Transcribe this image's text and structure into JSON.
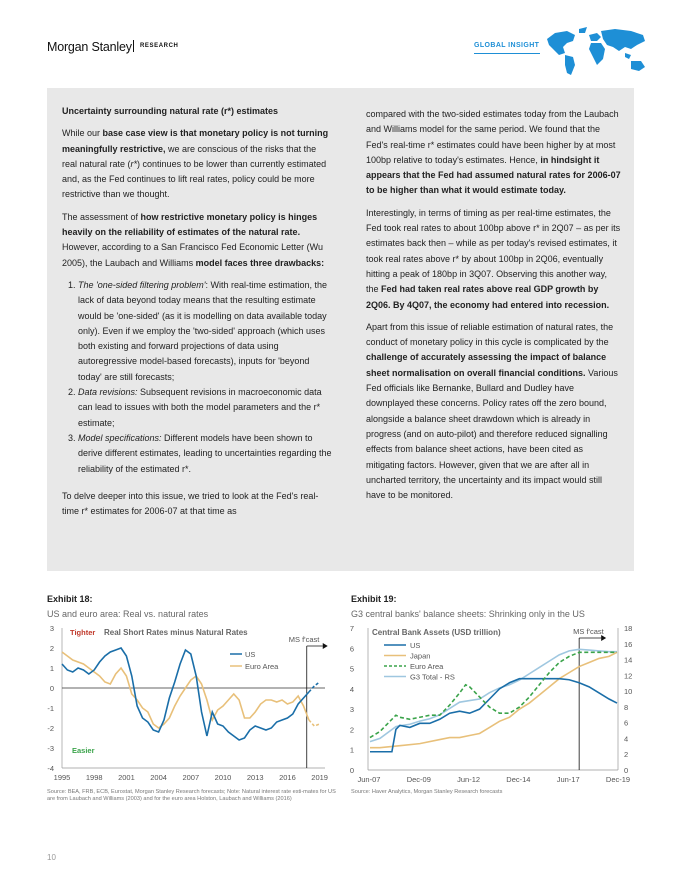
{
  "header": {
    "brand": "Morgan Stanley",
    "research": "RESEARCH",
    "global_insight": "GLOBAL INSIGHT"
  },
  "box": {
    "left": {
      "heading": "Uncertainty surrounding natural rate (r*) estimates",
      "p1": [
        {
          "t": "While our "
        },
        {
          "t": "base case view is that monetary policy is not turning meaningfully restrictive,",
          "b": true
        },
        {
          "t": " we are conscious of the risks that the real natural rate ("
        },
        {
          "t": "r*",
          "i": true
        },
        {
          "t": ") continues to be lower than currently estimated and, as the Fed continues to lift real rates, policy could be more restrictive than we thought."
        }
      ],
      "p2": [
        {
          "t": "The assessment of "
        },
        {
          "t": "how restrictive monetary policy is hinges heavily on the reliability of estimates of the natural rate.",
          "b": true
        },
        {
          "t": " However, according to a San Francisco Fed Economic Letter (Wu 2005), the Laubach and Williams "
        },
        {
          "t": "model faces three drawbacks:",
          "b": true
        }
      ],
      "list": [
        [
          {
            "t": "The 'one-sided filtering problem'",
            "i": true
          },
          {
            "t": ": With real-time estimation, the lack of data beyond today means that the resulting estimate would be 'one-sided' (as it is modelling on data available today only). Even if we employ the 'two-sided' approach (which uses both existing and forward projections of data using autoregressive model-based forecasts), inputs for 'beyond today' are still forecasts;"
          }
        ],
        [
          {
            "t": "Data revisions:",
            "i": true
          },
          {
            "t": " Subsequent revisions in macroeconomic data can lead to issues with both the model parameters and the r* estimate;"
          }
        ],
        [
          {
            "t": "Model specifications:",
            "i": true
          },
          {
            "t": " Different models have been shown to derive different estimates, leading to uncertainties regarding the reliability of the estimated r*."
          }
        ]
      ],
      "p3": [
        {
          "t": "To delve deeper into this issue, we tried to look at the Fed's real-time r* estimates for 2006-07 at that time as"
        }
      ]
    },
    "right": {
      "p1": [
        {
          "t": "compared with the two-sided estimates today from the Laubach and Williams model for the same period. We found that the Fed's real-time r* estimates could have been higher by at most 100bp relative to today's estimates. Hence, "
        },
        {
          "t": "in hindsight it appears that the Fed had assumed natural rates for 2006-07 to be higher than what it would estimate today.",
          "b": true
        }
      ],
      "p2": [
        {
          "t": "Interestingly, in terms of timing as per real-time estimates, the Fed took real rates to about 100bp above r* in 2Q07 – as per its estimates back then – while as per today's revised estimates, it took real rates above r* by about 100bp in 2Q06, eventually hitting a peak of 180bp in 3Q07. Observing this another way, the "
        },
        {
          "t": "Fed had taken real rates above real GDP growth by 2Q06. By 4Q07, the economy had entered into recession.",
          "b": true
        }
      ],
      "p3": [
        {
          "t": "Apart from this issue of reliable estimation of natural rates, the conduct of monetary policy in this cycle is complicated by the "
        },
        {
          "t": "challenge of accurately assessing the impact of balance sheet normalisation on overall financial conditions.",
          "b": true
        },
        {
          "t": " Various Fed officials like Bernanke, Bullard and Dudley have downplayed these concerns. Policy rates off the zero bound, alongside a balance sheet drawdown which is already in progress (and on auto-pilot) and therefore reduced signalling effects from balance sheet actions, have been cited as mitigating factors. However, given that we are after all in uncharted territory, the uncertainty and its impact would still have to be monitored."
        }
      ]
    }
  },
  "exhibit18": {
    "label": "Exhibit 18:",
    "subtitle": "US and euro area: Real vs. natural rates",
    "source": "Source: BEA, FRB, ECB, Eurostat, Morgan Stanley Research forecasts; Note: Natural interest rate esti-mates for US are from Laubach and Williams (2003) and for the euro area Holston, Laubach and Williams (2016)"
  },
  "exhibit19": {
    "label": "Exhibit 19:",
    "subtitle": "G3 central banks' balance sheets: Shrinking only in the US",
    "source": "Source: Haver Analytics, Morgan Stanley Research forecasts"
  },
  "page_number": "10",
  "colors": {
    "us": "#1a6ea8",
    "euro": "#e8c07a",
    "japan": "#e8c07a",
    "euroarea19": "#3aa34a",
    "g3": "#9fc7e0",
    "tighter": "#c0392b",
    "easier": "#3aa34a",
    "accent": "#1e8fd6"
  },
  "chart_data": [
    {
      "type": "line",
      "title": "Real Short Rates minus Natural Rates",
      "annotations": [
        "Tighter",
        "Easier",
        "MS f'cast"
      ],
      "x_ticks": [
        "1995",
        "1998",
        "2001",
        "2004",
        "2007",
        "2010",
        "2013",
        "2016",
        "2019"
      ],
      "xlim": [
        1995,
        2019.5
      ],
      "ylim": [
        -4,
        3
      ],
      "y_ticks": [
        "3",
        "2",
        "1",
        "0",
        "-1",
        "-2",
        "-3",
        "-4"
      ],
      "forecast_start": 2017.8,
      "series": [
        {
          "name": "US",
          "color": "#1a6ea8",
          "x": [
            1995.0,
            1995.5,
            1996.0,
            1996.5,
            1997.0,
            1997.5,
            1998.0,
            1998.5,
            1999.0,
            1999.5,
            2000.0,
            2000.5,
            2001.0,
            2001.5,
            2002.0,
            2002.5,
            2003.0,
            2003.5,
            2004.0,
            2004.5,
            2005.0,
            2005.5,
            2006.0,
            2006.5,
            2007.0,
            2007.5,
            2008.0,
            2008.5,
            2009.0,
            2009.5,
            2010.0,
            2010.5,
            2011.0,
            2011.5,
            2012.0,
            2012.5,
            2013.0,
            2013.5,
            2014.0,
            2014.5,
            2015.0,
            2015.5,
            2016.0,
            2016.5,
            2017.0,
            2017.5,
            2018.0,
            2018.5,
            2019.0
          ],
          "y": [
            1.2,
            0.9,
            0.8,
            1.0,
            0.9,
            0.7,
            0.9,
            1.3,
            1.6,
            1.8,
            1.9,
            2.0,
            1.6,
            0.6,
            -0.9,
            -1.5,
            -1.7,
            -2.1,
            -2.2,
            -1.6,
            -0.5,
            0.3,
            1.2,
            1.9,
            1.7,
            0.6,
            -1.2,
            -2.4,
            -1.2,
            -1.8,
            -1.9,
            -2.2,
            -2.4,
            -2.6,
            -2.5,
            -2.1,
            -1.9,
            -2.0,
            -2.1,
            -2.0,
            -1.7,
            -1.6,
            -1.5,
            -1.3,
            -0.8,
            -0.5,
            -0.2,
            0.1,
            0.3
          ]
        },
        {
          "name": "Euro Area",
          "color": "#e8c07a",
          "x": [
            1995.0,
            1995.5,
            1996.0,
            1996.5,
            1997.0,
            1997.5,
            1998.0,
            1998.5,
            1999.0,
            1999.5,
            2000.0,
            2000.5,
            2001.0,
            2001.5,
            2002.0,
            2002.5,
            2003.0,
            2003.5,
            2004.0,
            2004.5,
            2005.0,
            2005.5,
            2006.0,
            2006.5,
            2007.0,
            2007.5,
            2008.0,
            2008.5,
            2009.0,
            2009.5,
            2010.0,
            2010.5,
            2011.0,
            2011.5,
            2012.0,
            2012.5,
            2013.0,
            2013.5,
            2014.0,
            2014.5,
            2015.0,
            2015.5,
            2016.0,
            2016.5,
            2017.0,
            2017.5,
            2018.0,
            2018.5,
            2019.0
          ],
          "y": [
            1.8,
            1.6,
            1.4,
            1.3,
            1.2,
            1.0,
            0.8,
            0.6,
            0.3,
            0.2,
            0.7,
            1.0,
            0.6,
            -0.3,
            -0.6,
            -1.0,
            -1.2,
            -1.8,
            -2.0,
            -1.8,
            -1.5,
            -0.9,
            -0.4,
            0.0,
            0.4,
            0.6,
            0.2,
            -0.6,
            -1.6,
            -1.1,
            -0.9,
            -0.6,
            -0.3,
            -0.6,
            -1.5,
            -1.5,
            -1.2,
            -0.8,
            -0.6,
            -0.6,
            -0.7,
            -0.6,
            -0.8,
            -0.7,
            -0.4,
            -0.9,
            -1.6,
            -1.9,
            -1.8
          ]
        }
      ]
    },
    {
      "type": "line",
      "title": "Central Bank Assets (USD trillion)",
      "annotations": [
        "MS f'cast"
      ],
      "x_ticks": [
        "Jun-07",
        "Dec-09",
        "Jun-12",
        "Dec-14",
        "Jun-17",
        "Dec-19"
      ],
      "xlim": [
        2007.4,
        2019.95
      ],
      "forecast_start": 2018.0,
      "y_left": {
        "ylim": [
          0,
          7
        ],
        "ticks": [
          "7",
          "6",
          "5",
          "4",
          "3",
          "2",
          "1",
          "0"
        ]
      },
      "y_right": {
        "ylim": [
          0,
          18
        ],
        "ticks": [
          "18",
          "16",
          "14",
          "12",
          "10",
          "8",
          "6",
          "4",
          "2",
          "0"
        ]
      },
      "series": [
        {
          "name": "US",
          "color": "#1a6ea8",
          "axis": "left",
          "x": [
            2007.5,
            2008.0,
            2008.6,
            2008.8,
            2009.0,
            2009.5,
            2010.0,
            2010.5,
            2011.0,
            2011.5,
            2012.0,
            2012.5,
            2013.0,
            2013.5,
            2014.0,
            2014.5,
            2015.0,
            2016.0,
            2017.0,
            2017.5,
            2018.0,
            2018.5,
            2019.0,
            2019.5,
            2019.9
          ],
          "y": [
            0.9,
            0.9,
            0.9,
            2.0,
            2.2,
            2.1,
            2.3,
            2.3,
            2.5,
            2.8,
            2.9,
            2.8,
            3.0,
            3.5,
            4.0,
            4.3,
            4.5,
            4.5,
            4.5,
            4.45,
            4.3,
            4.1,
            3.8,
            3.5,
            3.3
          ]
        },
        {
          "name": "Japan",
          "color": "#e8c07a",
          "axis": "left",
          "x": [
            2007.5,
            2008.0,
            2009.0,
            2010.0,
            2011.0,
            2011.5,
            2012.0,
            2012.5,
            2013.0,
            2013.5,
            2014.0,
            2014.5,
            2015.0,
            2015.5,
            2016.0,
            2016.5,
            2017.0,
            2017.5,
            2018.0,
            2018.5,
            2019.0,
            2019.5,
            2019.9
          ],
          "y": [
            1.1,
            1.1,
            1.2,
            1.3,
            1.5,
            1.6,
            1.6,
            1.7,
            1.8,
            2.1,
            2.4,
            2.6,
            3.0,
            3.3,
            3.7,
            4.1,
            4.5,
            4.8,
            5.1,
            5.3,
            5.5,
            5.6,
            5.8
          ]
        },
        {
          "name": "Euro Area",
          "color": "#3aa34a",
          "axis": "left",
          "dashed": true,
          "x": [
            2007.5,
            2008.0,
            2008.8,
            2009.0,
            2009.5,
            2010.0,
            2010.5,
            2011.0,
            2011.5,
            2012.0,
            2012.3,
            2012.5,
            2013.0,
            2013.5,
            2014.0,
            2014.5,
            2015.0,
            2015.5,
            2016.0,
            2016.5,
            2017.0,
            2017.5,
            2018.0,
            2018.5,
            2019.0,
            2019.5,
            2019.9
          ],
          "y": [
            1.6,
            1.9,
            2.7,
            2.6,
            2.5,
            2.6,
            2.7,
            2.7,
            3.2,
            3.8,
            4.2,
            4.1,
            3.6,
            3.1,
            2.8,
            2.8,
            3.1,
            3.6,
            4.2,
            4.8,
            5.3,
            5.6,
            5.8,
            5.8,
            5.8,
            5.8,
            5.8
          ]
        },
        {
          "name": "G3 Total - RS",
          "color": "#9fc7e0",
          "axis": "right",
          "x": [
            2007.5,
            2008.0,
            2008.8,
            2009.0,
            2009.5,
            2010.0,
            2010.5,
            2011.0,
            2011.5,
            2012.0,
            2012.5,
            2013.0,
            2013.5,
            2014.0,
            2014.5,
            2015.0,
            2015.5,
            2016.0,
            2016.5,
            2017.0,
            2017.5,
            2018.0,
            2018.5,
            2019.0,
            2019.5,
            2019.9
          ],
          "y": [
            3.6,
            4.0,
            5.5,
            5.6,
            5.8,
            6.2,
            6.5,
            7.0,
            7.8,
            8.6,
            8.8,
            9.0,
            9.8,
            10.4,
            10.8,
            11.4,
            12.2,
            13.0,
            13.8,
            14.6,
            15.1,
            15.3,
            15.2,
            15.1,
            15.0,
            15.0
          ]
        }
      ]
    }
  ]
}
